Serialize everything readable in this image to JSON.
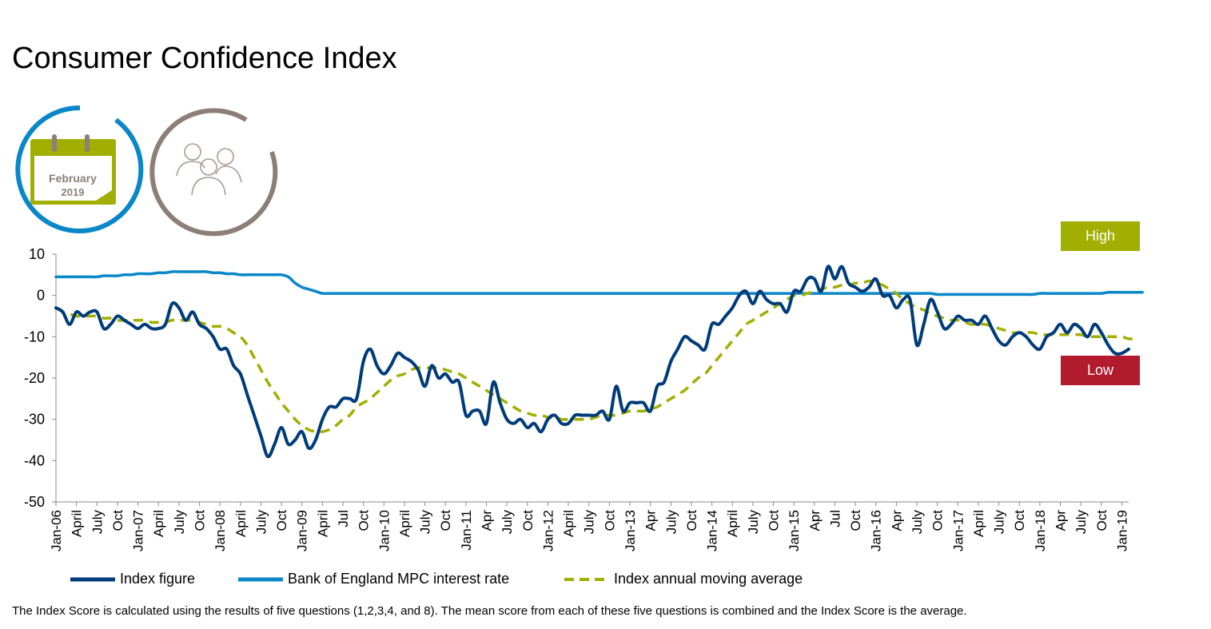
{
  "title": "Consumer Confidence Index",
  "badge": {
    "month": "February",
    "year": "2019"
  },
  "tags": {
    "high": "High",
    "low": "Low"
  },
  "legend": {
    "index": "Index figure",
    "rate": "Bank of England MPC interest rate",
    "avg": "Index annual moving average"
  },
  "footnote": "The Index Score is calculated using the results of five questions (1,2,3,4, and 8). The mean score from each of these five questions is combined and the Index Score is the average.",
  "colors": {
    "index": "#003b7a",
    "rate": "#0a87c8",
    "avg": "#a0af00",
    "high": "#a0af00",
    "low": "#b21a2d",
    "ring_blue": "#0a87c8",
    "ring_grey": "#8c7f78"
  },
  "icons": [
    "calendar-icon",
    "family-icon"
  ],
  "chart_data": {
    "type": "line",
    "ylim": [
      -50,
      10
    ],
    "yticks": [
      10,
      0,
      -10,
      -20,
      -30,
      -40,
      -50
    ],
    "xlim": [
      0,
      157
    ],
    "xticks": [
      {
        "label": "Jan-06",
        "x": 0
      },
      {
        "label": "April",
        "x": 3
      },
      {
        "label": "July",
        "x": 6
      },
      {
        "label": "Oct",
        "x": 9
      },
      {
        "label": "Jan-07",
        "x": 12
      },
      {
        "label": "April",
        "x": 15
      },
      {
        "label": "July",
        "x": 18
      },
      {
        "label": "Oct",
        "x": 21
      },
      {
        "label": "Jan-08",
        "x": 24
      },
      {
        "label": "April",
        "x": 27
      },
      {
        "label": "July",
        "x": 30
      },
      {
        "label": "Oct",
        "x": 33
      },
      {
        "label": "Jan-09",
        "x": 36
      },
      {
        "label": "April",
        "x": 39
      },
      {
        "label": "Jul",
        "x": 42
      },
      {
        "label": "Oct",
        "x": 45
      },
      {
        "label": "Jan-10",
        "x": 48
      },
      {
        "label": "April",
        "x": 51
      },
      {
        "label": "July",
        "x": 54
      },
      {
        "label": "Oct",
        "x": 57
      },
      {
        "label": "Jan-11",
        "x": 60
      },
      {
        "label": "Apr",
        "x": 63
      },
      {
        "label": "July",
        "x": 66
      },
      {
        "label": "Oct",
        "x": 69
      },
      {
        "label": "Jan-12",
        "x": 72
      },
      {
        "label": "April",
        "x": 75
      },
      {
        "label": "July",
        "x": 78
      },
      {
        "label": "Oct",
        "x": 81
      },
      {
        "label": "Jan-13",
        "x": 84
      },
      {
        "label": "Apr",
        "x": 87
      },
      {
        "label": "July",
        "x": 90
      },
      {
        "label": "Oct",
        "x": 93
      },
      {
        "label": "Jan-14",
        "x": 96
      },
      {
        "label": "April",
        "x": 99
      },
      {
        "label": "July",
        "x": 102
      },
      {
        "label": "Oct",
        "x": 105
      },
      {
        "label": "Jan-15",
        "x": 108
      },
      {
        "label": "Apr",
        "x": 111
      },
      {
        "label": "Jul",
        "x": 114
      },
      {
        "label": "Oct",
        "x": 117
      },
      {
        "label": "Jan-16",
        "x": 120
      },
      {
        "label": "Apr",
        "x": 123
      },
      {
        "label": "July",
        "x": 126
      },
      {
        "label": "Oct",
        "x": 129
      },
      {
        "label": "Jan-17",
        "x": 132
      },
      {
        "label": "April",
        "x": 135
      },
      {
        "label": "July",
        "x": 138
      },
      {
        "label": "Oct",
        "x": 141
      },
      {
        "label": "Jan-18",
        "x": 144
      },
      {
        "label": "Apr",
        "x": 147
      },
      {
        "label": "July",
        "x": 150
      },
      {
        "label": "Oct",
        "x": 153
      },
      {
        "label": "Jan-19",
        "x": 156
      }
    ],
    "series": [
      {
        "name": "Index figure",
        "key": "index",
        "style": "solid",
        "values": [
          -3,
          -4,
          -7,
          -4,
          -5,
          -4,
          -4,
          -8,
          -7,
          -5,
          -6,
          -7,
          -8,
          -7,
          -8,
          -8,
          -7,
          -2,
          -3,
          -6,
          -4,
          -7,
          -8,
          -10,
          -13,
          -13,
          -17,
          -19,
          -24,
          -29,
          -34,
          -39,
          -36,
          -32,
          -36,
          -35,
          -33,
          -37,
          -35,
          -30,
          -27,
          -27,
          -25,
          -25,
          -25,
          -16,
          -13,
          -17,
          -19,
          -17,
          -14,
          -15,
          -16,
          -18,
          -22,
          -17,
          -20,
          -19,
          -21,
          -21,
          -29,
          -28,
          -28,
          -31,
          -21,
          -26,
          -30,
          -31,
          -30,
          -32,
          -31,
          -33,
          -30,
          -29,
          -31,
          -31,
          -29,
          -29,
          -29,
          -29,
          -28,
          -30,
          -22,
          -28,
          -26,
          -26,
          -26,
          -28,
          -22,
          -21,
          -16,
          -13,
          -10,
          -11,
          -12,
          -13,
          -7,
          -7,
          -5,
          -3,
          0,
          1,
          -2,
          1,
          -1,
          -2,
          -2,
          -4,
          1,
          1,
          4,
          4,
          1,
          7,
          4,
          7,
          3,
          2,
          1,
          2,
          4,
          0,
          0,
          -3,
          -1,
          -1,
          -12,
          -7,
          -1,
          -4,
          -8,
          -7,
          -5,
          -6,
          -6,
          -7,
          -5,
          -8,
          -11,
          -12,
          -10,
          -9,
          -10,
          -12,
          -13,
          -10,
          -9,
          -7,
          -9,
          -7,
          -8,
          -10,
          -7,
          -9,
          -12,
          -14,
          -14,
          -13
        ]
      },
      {
        "name": "Bank of England MPC interest rate",
        "key": "rate",
        "style": "solid",
        "values": [
          4.5,
          4.5,
          4.5,
          4.5,
          4.5,
          4.5,
          4.5,
          4.75,
          4.75,
          4.75,
          5,
          5,
          5.25,
          5.25,
          5.25,
          5.5,
          5.5,
          5.75,
          5.75,
          5.75,
          5.75,
          5.75,
          5.75,
          5.5,
          5.5,
          5.25,
          5.25,
          5,
          5,
          5,
          5,
          5,
          5,
          5,
          4.5,
          3,
          2,
          1.5,
          1,
          0.5,
          0.5,
          0.5,
          0.5,
          0.5,
          0.5,
          0.5,
          0.5,
          0.5,
          0.5,
          0.5,
          0.5,
          0.5,
          0.5,
          0.5,
          0.5,
          0.5,
          0.5,
          0.5,
          0.5,
          0.5,
          0.5,
          0.5,
          0.5,
          0.5,
          0.5,
          0.5,
          0.5,
          0.5,
          0.5,
          0.5,
          0.5,
          0.5,
          0.5,
          0.5,
          0.5,
          0.5,
          0.5,
          0.5,
          0.5,
          0.5,
          0.5,
          0.5,
          0.5,
          0.5,
          0.5,
          0.5,
          0.5,
          0.5,
          0.5,
          0.5,
          0.5,
          0.5,
          0.5,
          0.5,
          0.5,
          0.5,
          0.5,
          0.5,
          0.5,
          0.5,
          0.5,
          0.5,
          0.5,
          0.5,
          0.5,
          0.5,
          0.5,
          0.5,
          0.5,
          0.5,
          0.5,
          0.5,
          0.5,
          0.5,
          0.5,
          0.5,
          0.5,
          0.5,
          0.5,
          0.5,
          0.5,
          0.5,
          0.5,
          0.5,
          0.5,
          0.5,
          0.5,
          0.5,
          0.5,
          0.25,
          0.25,
          0.25,
          0.25,
          0.25,
          0.25,
          0.25,
          0.25,
          0.25,
          0.25,
          0.25,
          0.25,
          0.25,
          0.25,
          0.25,
          0.5,
          0.5,
          0.5,
          0.5,
          0.5,
          0.5,
          0.5,
          0.5,
          0.5,
          0.5,
          0.75,
          0.75,
          0.75,
          0.75,
          0.75,
          0.75
        ]
      },
      {
        "name": "Index annual moving average",
        "key": "avg",
        "style": "dashed",
        "values": [
          -3,
          -4,
          -4.5,
          -5,
          -5,
          -5,
          -5,
          -5.5,
          -5.5,
          -6,
          -6,
          -6,
          -6,
          -6,
          -6.5,
          -6.5,
          -6.5,
          -6,
          -6,
          -6,
          -6,
          -6.5,
          -7,
          -7.5,
          -7.5,
          -8,
          -9,
          -10,
          -12,
          -15,
          -18,
          -21,
          -23.5,
          -26,
          -28,
          -30,
          -31.5,
          -32.5,
          -33,
          -33,
          -32.5,
          -31.5,
          -30,
          -29,
          -27,
          -26,
          -25,
          -23.5,
          -22,
          -20.5,
          -19.5,
          -19,
          -18,
          -17.5,
          -17.5,
          -17.5,
          -17.5,
          -18,
          -18.5,
          -19,
          -20,
          -21,
          -22,
          -23,
          -24,
          -25,
          -26,
          -27,
          -28,
          -28.5,
          -29,
          -29,
          -29.5,
          -29.5,
          -30,
          -30,
          -30,
          -30,
          -30,
          -29.5,
          -29,
          -29,
          -29,
          -28.5,
          -28,
          -28,
          -28,
          -27.5,
          -27,
          -26,
          -25,
          -24,
          -23,
          -21.5,
          -20,
          -19,
          -17,
          -15,
          -13,
          -11,
          -9,
          -7,
          -6,
          -5,
          -4,
          -3,
          -2,
          -1,
          0,
          0,
          0.5,
          1,
          1.5,
          2,
          2,
          2.5,
          2.5,
          3,
          3,
          3.5,
          3,
          2.5,
          1.5,
          0.5,
          -1,
          -2,
          -3,
          -3.5,
          -4.5,
          -5,
          -5.5,
          -6,
          -6,
          -6.5,
          -7,
          -7,
          -7,
          -7.5,
          -8,
          -8.5,
          -9,
          -9,
          -9,
          -9,
          -9.5,
          -9.5,
          -9.5,
          -9.5,
          -9.5,
          -9.5,
          -9.5,
          -10,
          -10,
          -10,
          -10,
          -10,
          -10,
          -10.5,
          -10.5
        ]
      }
    ]
  }
}
